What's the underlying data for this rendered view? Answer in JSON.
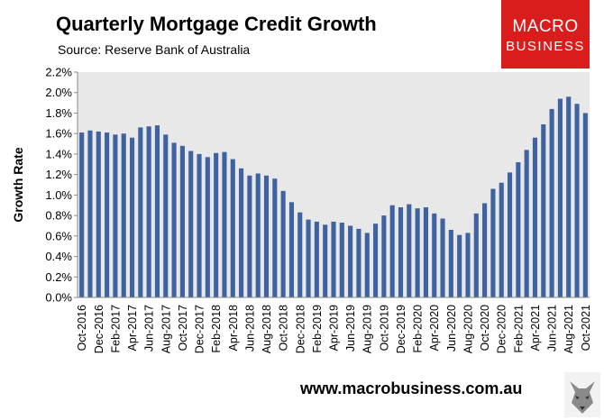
{
  "header": {
    "title": "Quarterly Mortgage Credit Growth",
    "source": "Source: Reserve Bank of Australia"
  },
  "logo": {
    "line1": "MACRO",
    "line2": "BUSINESS"
  },
  "footer": {
    "website": "www.macrobusiness.com.au"
  },
  "colors": {
    "bar": "#3f63a0",
    "plot_bg": "#e8e8e8",
    "logo_bg": "#d91c1c"
  },
  "chart_data": {
    "type": "bar",
    "ylabel": "Growth Rate",
    "xlabel": "",
    "ylim": [
      0,
      2.2
    ],
    "ytick_step": 0.2,
    "ytick_labels": [
      "0.0%",
      "0.2%",
      "0.4%",
      "0.6%",
      "0.8%",
      "1.0%",
      "1.2%",
      "1.4%",
      "1.6%",
      "1.8%",
      "2.0%",
      "2.2%"
    ],
    "grid": false,
    "xtick_every": 2,
    "categories": [
      "Oct-2016",
      "Nov-2016",
      "Dec-2016",
      "Jan-2017",
      "Feb-2017",
      "Mar-2017",
      "Apr-2017",
      "May-2017",
      "Jun-2017",
      "Jul-2017",
      "Aug-2017",
      "Sep-2017",
      "Oct-2017",
      "Nov-2017",
      "Dec-2017",
      "Jan-2018",
      "Feb-2018",
      "Mar-2018",
      "Apr-2018",
      "May-2018",
      "Jun-2018",
      "Jul-2018",
      "Aug-2018",
      "Sep-2018",
      "Oct-2018",
      "Nov-2018",
      "Dec-2018",
      "Jan-2019",
      "Feb-2019",
      "Mar-2019",
      "Apr-2019",
      "May-2019",
      "Jun-2019",
      "Jul-2019",
      "Aug-2019",
      "Sep-2019",
      "Oct-2019",
      "Nov-2019",
      "Dec-2019",
      "Jan-2020",
      "Feb-2020",
      "Mar-2020",
      "Apr-2020",
      "May-2020",
      "Jun-2020",
      "Jul-2020",
      "Aug-2020",
      "Sep-2020",
      "Oct-2020",
      "Nov-2020",
      "Dec-2020",
      "Jan-2021",
      "Feb-2021",
      "Mar-2021",
      "Apr-2021",
      "May-2021",
      "Jun-2021",
      "Jul-2021",
      "Aug-2021",
      "Sep-2021",
      "Oct-2021"
    ],
    "values": [
      1.61,
      1.63,
      1.62,
      1.61,
      1.59,
      1.6,
      1.56,
      1.66,
      1.67,
      1.68,
      1.59,
      1.51,
      1.48,
      1.43,
      1.4,
      1.37,
      1.41,
      1.42,
      1.35,
      1.26,
      1.19,
      1.21,
      1.19,
      1.16,
      1.04,
      0.93,
      0.83,
      0.76,
      0.74,
      0.71,
      0.74,
      0.73,
      0.7,
      0.67,
      0.63,
      0.72,
      0.8,
      0.9,
      0.88,
      0.91,
      0.87,
      0.88,
      0.82,
      0.77,
      0.66,
      0.61,
      0.63,
      0.82,
      0.92,
      1.06,
      1.12,
      1.22,
      1.32,
      1.44,
      1.56,
      1.69,
      1.84,
      1.94,
      1.96,
      1.89,
      1.8
    ]
  }
}
